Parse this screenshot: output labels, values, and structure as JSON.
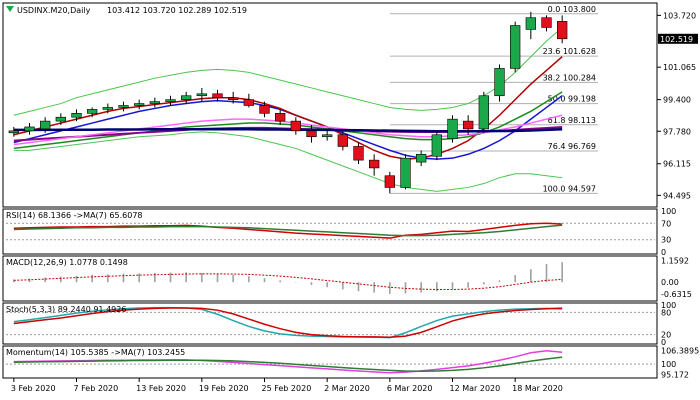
{
  "window": {
    "icon": "chart-icon",
    "symbol": "USDINX.M20,Daily",
    "ohlc": "103.412 103.720 102.289 102.519"
  },
  "colors": {
    "bull": "#1aa84a",
    "bear": "#e0101a",
    "frame": "#000000",
    "ma_blue": "#1515d6",
    "ma_red": "#b00000",
    "ma_green": "#1e8a1e",
    "ma_purple": "#8a008a",
    "ma_pink": "#ff66ff",
    "ma_navy": "#000070",
    "bb": "#4fc44f",
    "fib": "#b0b0b0",
    "rsi": "#d40000",
    "rsi_ma": "#2e7d32",
    "macd_hist": "#a0a0a0",
    "macd_signal": "#c00000",
    "stoch_main": "#20a8b0",
    "stoch_signal": "#d00000",
    "mom": "#e040e0",
    "mom_ma": "#2e7d32",
    "price_box_bg": "#000000",
    "price_box_fg": "#ffffff"
  },
  "chart_data": [
    {
      "type": "candlestick",
      "panel": "price",
      "title": "USDINX.M20,Daily",
      "ylim": [
        94.0,
        104.2
      ],
      "price_ticks": [
        "103.720",
        "102.519",
        "101.065",
        "99.400",
        "97.780",
        "96.115",
        "94.495"
      ],
      "tick_values": [
        103.72,
        102.519,
        101.065,
        99.4,
        97.78,
        96.115,
        94.495
      ],
      "last_price": "102.519",
      "grid": false,
      "candles": [
        {
          "o": 97.7,
          "h": 98.0,
          "l": 97.5,
          "c": 97.8
        },
        {
          "o": 97.8,
          "h": 98.2,
          "l": 97.6,
          "c": 98.0
        },
        {
          "o": 97.9,
          "h": 98.5,
          "l": 97.7,
          "c": 98.3
        },
        {
          "o": 98.3,
          "h": 98.7,
          "l": 98.1,
          "c": 98.5
        },
        {
          "o": 98.5,
          "h": 98.9,
          "l": 98.3,
          "c": 98.7
        },
        {
          "o": 98.7,
          "h": 99.0,
          "l": 98.5,
          "c": 98.9
        },
        {
          "o": 98.9,
          "h": 99.2,
          "l": 98.7,
          "c": 99.0
        },
        {
          "o": 99.0,
          "h": 99.3,
          "l": 98.8,
          "c": 99.1
        },
        {
          "o": 99.1,
          "h": 99.4,
          "l": 98.9,
          "c": 99.2
        },
        {
          "o": 99.2,
          "h": 99.5,
          "l": 99.0,
          "c": 99.3
        },
        {
          "o": 99.3,
          "h": 99.6,
          "l": 99.1,
          "c": 99.4
        },
        {
          "o": 99.4,
          "h": 99.8,
          "l": 99.2,
          "c": 99.6
        },
        {
          "o": 99.6,
          "h": 100.0,
          "l": 99.3,
          "c": 99.7
        },
        {
          "o": 99.7,
          "h": 99.9,
          "l": 99.3,
          "c": 99.5
        },
        {
          "o": 99.5,
          "h": 99.8,
          "l": 99.2,
          "c": 99.4
        },
        {
          "o": 99.4,
          "h": 99.7,
          "l": 99.0,
          "c": 99.1
        },
        {
          "o": 99.1,
          "h": 99.3,
          "l": 98.5,
          "c": 98.7
        },
        {
          "o": 98.7,
          "h": 98.9,
          "l": 98.1,
          "c": 98.3
        },
        {
          "o": 98.3,
          "h": 98.5,
          "l": 97.6,
          "c": 97.8
        },
        {
          "o": 97.8,
          "h": 98.1,
          "l": 97.2,
          "c": 97.5
        },
        {
          "o": 97.5,
          "h": 97.9,
          "l": 97.3,
          "c": 97.6
        },
        {
          "o": 97.6,
          "h": 97.8,
          "l": 96.8,
          "c": 97.0
        },
        {
          "o": 97.0,
          "h": 97.2,
          "l": 96.1,
          "c": 96.3
        },
        {
          "o": 96.3,
          "h": 96.6,
          "l": 95.5,
          "c": 95.9
        },
        {
          "o": 95.5,
          "h": 95.7,
          "l": 94.6,
          "c": 94.9
        },
        {
          "o": 94.9,
          "h": 96.6,
          "l": 94.8,
          "c": 96.4
        },
        {
          "o": 96.2,
          "h": 96.8,
          "l": 96.0,
          "c": 96.6
        },
        {
          "o": 96.5,
          "h": 97.8,
          "l": 96.3,
          "c": 97.6
        },
        {
          "o": 97.4,
          "h": 98.6,
          "l": 97.2,
          "c": 98.4
        },
        {
          "o": 98.3,
          "h": 98.6,
          "l": 97.6,
          "c": 97.9
        },
        {
          "o": 97.9,
          "h": 99.8,
          "l": 97.7,
          "c": 99.6
        },
        {
          "o": 99.6,
          "h": 101.2,
          "l": 99.3,
          "c": 101.0
        },
        {
          "o": 101.0,
          "h": 103.4,
          "l": 100.8,
          "c": 103.2
        },
        {
          "o": 103.0,
          "h": 103.9,
          "l": 102.5,
          "c": 103.6
        },
        {
          "o": 103.6,
          "h": 103.72,
          "l": 102.9,
          "c": 103.1
        },
        {
          "o": 103.412,
          "h": 103.72,
          "l": 102.289,
          "c": 102.519
        }
      ],
      "moving_averages": [
        {
          "color_key": "ma_blue",
          "values": [
            97.2,
            97.4,
            97.6,
            97.8,
            98.0,
            98.2,
            98.4,
            98.6,
            98.8,
            98.95,
            99.1,
            99.2,
            99.3,
            99.35,
            99.3,
            99.25,
            99.1,
            98.9,
            98.6,
            98.3,
            98.0,
            97.7,
            97.4,
            97.1,
            96.8,
            96.55,
            96.4,
            96.35,
            96.4,
            96.6,
            96.9,
            97.3,
            97.8,
            98.4,
            99.0,
            99.6
          ]
        },
        {
          "color_key": "ma_red",
          "values": [
            97.6,
            97.8,
            98.0,
            98.2,
            98.4,
            98.6,
            98.8,
            98.95,
            99.05,
            99.15,
            99.25,
            99.35,
            99.45,
            99.5,
            99.5,
            99.4,
            99.2,
            98.95,
            98.6,
            98.3,
            98.0,
            97.6,
            97.2,
            96.8,
            96.5,
            96.35,
            96.4,
            96.6,
            96.9,
            97.3,
            97.9,
            98.6,
            99.4,
            100.2,
            100.9,
            101.6
          ]
        },
        {
          "color_key": "ma_green",
          "values": [
            96.9,
            97.0,
            97.1,
            97.2,
            97.3,
            97.4,
            97.5,
            97.6,
            97.7,
            97.8,
            97.9,
            98.0,
            98.05,
            98.1,
            98.15,
            98.2,
            98.2,
            98.15,
            98.1,
            98.0,
            97.9,
            97.8,
            97.7,
            97.6,
            97.5,
            97.4,
            97.35,
            97.35,
            97.4,
            97.5,
            97.7,
            98.0,
            98.4,
            98.8,
            99.3,
            99.8
          ]
        },
        {
          "color_key": "ma_purple",
          "values": [
            97.3,
            97.35,
            97.4,
            97.45,
            97.5,
            97.55,
            97.6,
            97.65,
            97.7,
            97.75,
            97.8,
            97.85,
            97.9,
            97.92,
            97.94,
            97.95,
            97.95,
            97.93,
            97.9,
            97.88,
            97.85,
            97.82,
            97.8,
            97.78,
            97.76,
            97.75,
            97.74,
            97.74,
            97.75,
            97.76,
            97.78,
            97.8,
            97.85,
            97.9,
            97.95,
            98.0
          ]
        },
        {
          "color_key": "ma_pink",
          "values": [
            97.1,
            97.2,
            97.3,
            97.4,
            97.5,
            97.6,
            97.7,
            97.8,
            97.9,
            98.0,
            98.1,
            98.2,
            98.3,
            98.35,
            98.4,
            98.4,
            98.35,
            98.3,
            98.2,
            98.1,
            98.0,
            97.9,
            97.8,
            97.7,
            97.6,
            97.55,
            97.5,
            97.5,
            97.55,
            97.6,
            97.7,
            97.85,
            98.0,
            98.2,
            98.4,
            98.6
          ]
        },
        {
          "color_key": "ma_navy",
          "values": [
            97.85,
            97.85,
            97.85,
            97.86,
            97.86,
            97.86,
            97.87,
            97.87,
            97.87,
            97.88,
            97.88,
            97.88,
            97.88,
            97.88,
            97.88,
            97.88,
            97.87,
            97.87,
            97.86,
            97.86,
            97.85,
            97.84,
            97.83,
            97.82,
            97.81,
            97.8,
            97.79,
            97.78,
            97.78,
            97.78,
            97.78,
            97.79,
            97.8,
            97.82,
            97.85,
            97.88
          ]
        }
      ],
      "bollinger": {
        "upper": [
          98.6,
          98.8,
          99.0,
          99.2,
          99.5,
          99.7,
          99.9,
          100.1,
          100.3,
          100.5,
          100.65,
          100.8,
          100.9,
          100.95,
          100.9,
          100.8,
          100.6,
          100.4,
          100.2,
          100.0,
          99.8,
          99.6,
          99.4,
          99.2,
          99.0,
          98.9,
          98.85,
          98.9,
          99.0,
          99.2,
          99.6,
          100.1,
          100.8,
          101.6,
          102.4,
          103.1
        ],
        "lower": [
          96.8,
          96.8,
          96.9,
          97.0,
          97.1,
          97.2,
          97.3,
          97.4,
          97.5,
          97.55,
          97.6,
          97.7,
          97.75,
          97.7,
          97.6,
          97.5,
          97.3,
          97.1,
          96.9,
          96.6,
          96.3,
          96.0,
          95.7,
          95.4,
          95.1,
          94.9,
          94.8,
          94.7,
          94.8,
          94.9,
          95.1,
          95.4,
          95.6,
          95.6,
          95.5,
          95.4
        ]
      },
      "fibonacci": [
        {
          "label": "0.0 103.800",
          "value": 103.8
        },
        {
          "label": "23.6 101.628",
          "value": 101.628
        },
        {
          "label": "38.2 100.284",
          "value": 100.284
        },
        {
          "label": "50.0 99.198",
          "value": 99.198
        },
        {
          "label": "61.8 98.113",
          "value": 98.113
        },
        {
          "label": "76.4 96.769",
          "value": 96.769
        },
        {
          "label": "100.0 94.597",
          "value": 94.597
        }
      ]
    },
    {
      "type": "line",
      "panel": "rsi",
      "title": "RSI(14) 68.1366  ->MA(7) 65.6078",
      "ylim": [
        0,
        100
      ],
      "levels": [
        70,
        30
      ],
      "tick_labels": [
        "100",
        "70",
        "30",
        "0"
      ],
      "series": [
        {
          "color_key": "rsi",
          "values": [
            58,
            59,
            60,
            61,
            61,
            62,
            62,
            63,
            63,
            64,
            64,
            65,
            63,
            60,
            58,
            55,
            52,
            49,
            46,
            44,
            42,
            40,
            38,
            36,
            34,
            41,
            43,
            47,
            51,
            50,
            55,
            60,
            65,
            69,
            70,
            68.1366
          ]
        },
        {
          "color_key": "rsi_ma",
          "values": [
            55,
            56,
            57,
            58,
            59,
            59,
            60,
            60,
            61,
            61,
            62,
            62,
            62,
            61,
            60,
            59,
            57,
            55,
            53,
            51,
            49,
            47,
            45,
            43,
            41,
            40,
            40,
            41,
            43,
            45,
            47,
            50,
            54,
            58,
            62,
            65.6078
          ]
        }
      ]
    },
    {
      "type": "bar",
      "panel": "macd",
      "title": "MACD(12,26,9) 1.0778 0.1498",
      "ylim": [
        -0.9,
        1.3
      ],
      "ticks": [
        1.1592,
        0.0,
        -0.6315
      ],
      "tick_labels": [
        "1.1592",
        "0.00",
        "-0.6315"
      ],
      "values": [
        0.15,
        0.2,
        0.25,
        0.3,
        0.35,
        0.4,
        0.43,
        0.46,
        0.48,
        0.5,
        0.52,
        0.53,
        0.5,
        0.45,
        0.4,
        0.32,
        0.22,
        0.1,
        -0.02,
        -0.15,
        -0.27,
        -0.38,
        -0.48,
        -0.56,
        -0.63,
        -0.6,
        -0.55,
        -0.48,
        -0.38,
        -0.3,
        -0.12,
        0.1,
        0.38,
        0.7,
        0.98,
        1.0778
      ],
      "signal": [
        0.1,
        0.13,
        0.17,
        0.21,
        0.25,
        0.29,
        0.32,
        0.35,
        0.38,
        0.4,
        0.42,
        0.44,
        0.45,
        0.45,
        0.44,
        0.42,
        0.38,
        0.33,
        0.26,
        0.18,
        0.09,
        0.0,
        -0.09,
        -0.18,
        -0.27,
        -0.33,
        -0.37,
        -0.39,
        -0.39,
        -0.37,
        -0.32,
        -0.24,
        -0.12,
        0.0,
        0.1,
        0.1498
      ]
    },
    {
      "type": "line",
      "panel": "stochastic",
      "title": "Stoch(5,3,3) 89.2440 91.4926",
      "ylim": [
        0,
        100
      ],
      "levels": [
        80,
        20
      ],
      "tick_labels": [
        "100",
        "80",
        "20",
        "0"
      ],
      "series": [
        {
          "color_key": "stoch_main",
          "values": [
            55,
            60,
            66,
            72,
            78,
            83,
            87,
            90,
            92,
            93,
            93,
            92,
            88,
            75,
            58,
            42,
            30,
            22,
            18,
            16,
            15,
            14,
            14,
            13,
            12,
            25,
            42,
            58,
            70,
            76,
            82,
            86,
            89,
            90,
            91,
            89.244
          ]
        },
        {
          "color_key": "stoch_signal",
          "values": [
            50,
            55,
            60,
            65,
            71,
            77,
            82,
            86,
            89,
            91,
            92,
            92,
            91,
            86,
            76,
            62,
            48,
            36,
            26,
            20,
            17,
            15,
            14,
            14,
            13,
            16,
            26,
            41,
            57,
            68,
            76,
            81,
            85,
            88,
            90,
            91.4926
          ]
        }
      ]
    },
    {
      "type": "line",
      "panel": "momentum",
      "title": "Momentum(14) 105.5385  ->MA(7) 103.2455",
      "ylim": [
        94.5,
        107.5
      ],
      "levels": [
        100
      ],
      "ticks": [
        106.3895,
        100.0,
        95.172
      ],
      "tick_labels": [
        "106.3895",
        "100",
        "95.172"
      ],
      "series": [
        {
          "color_key": "mom",
          "values": [
            101.2,
            101.3,
            101.4,
            101.5,
            101.6,
            101.7,
            101.8,
            101.8,
            101.9,
            101.9,
            102.0,
            102.0,
            101.7,
            101.3,
            100.8,
            100.3,
            99.8,
            99.3,
            98.8,
            98.3,
            97.8,
            97.3,
            96.8,
            96.4,
            96.0,
            96.3,
            96.9,
            97.6,
            98.4,
            99.2,
            100.4,
            101.8,
            103.4,
            105.3,
            106.2,
            105.5385
          ]
        },
        {
          "color_key": "mom_ma",
          "values": [
            100.9,
            101.0,
            101.1,
            101.2,
            101.3,
            101.4,
            101.5,
            101.6,
            101.7,
            101.7,
            101.8,
            101.8,
            101.8,
            101.7,
            101.5,
            101.2,
            100.8,
            100.4,
            99.9,
            99.4,
            98.9,
            98.4,
            97.9,
            97.5,
            97.1,
            96.8,
            96.7,
            96.8,
            97.1,
            97.6,
            98.3,
            99.2,
            100.3,
            101.4,
            102.4,
            103.2455
          ]
        }
      ]
    }
  ],
  "date_axis": [
    "3 Feb 2020",
    "7 Feb 2020",
    "13 Feb 2020",
    "19 Feb 2020",
    "25 Feb 2020",
    "2 Mar 2020",
    "6 Mar 2020",
    "12 Mar 2020",
    "18 Mar 2020"
  ],
  "date_axis_index": [
    0,
    4,
    8,
    12,
    16,
    20,
    24,
    28,
    32
  ]
}
